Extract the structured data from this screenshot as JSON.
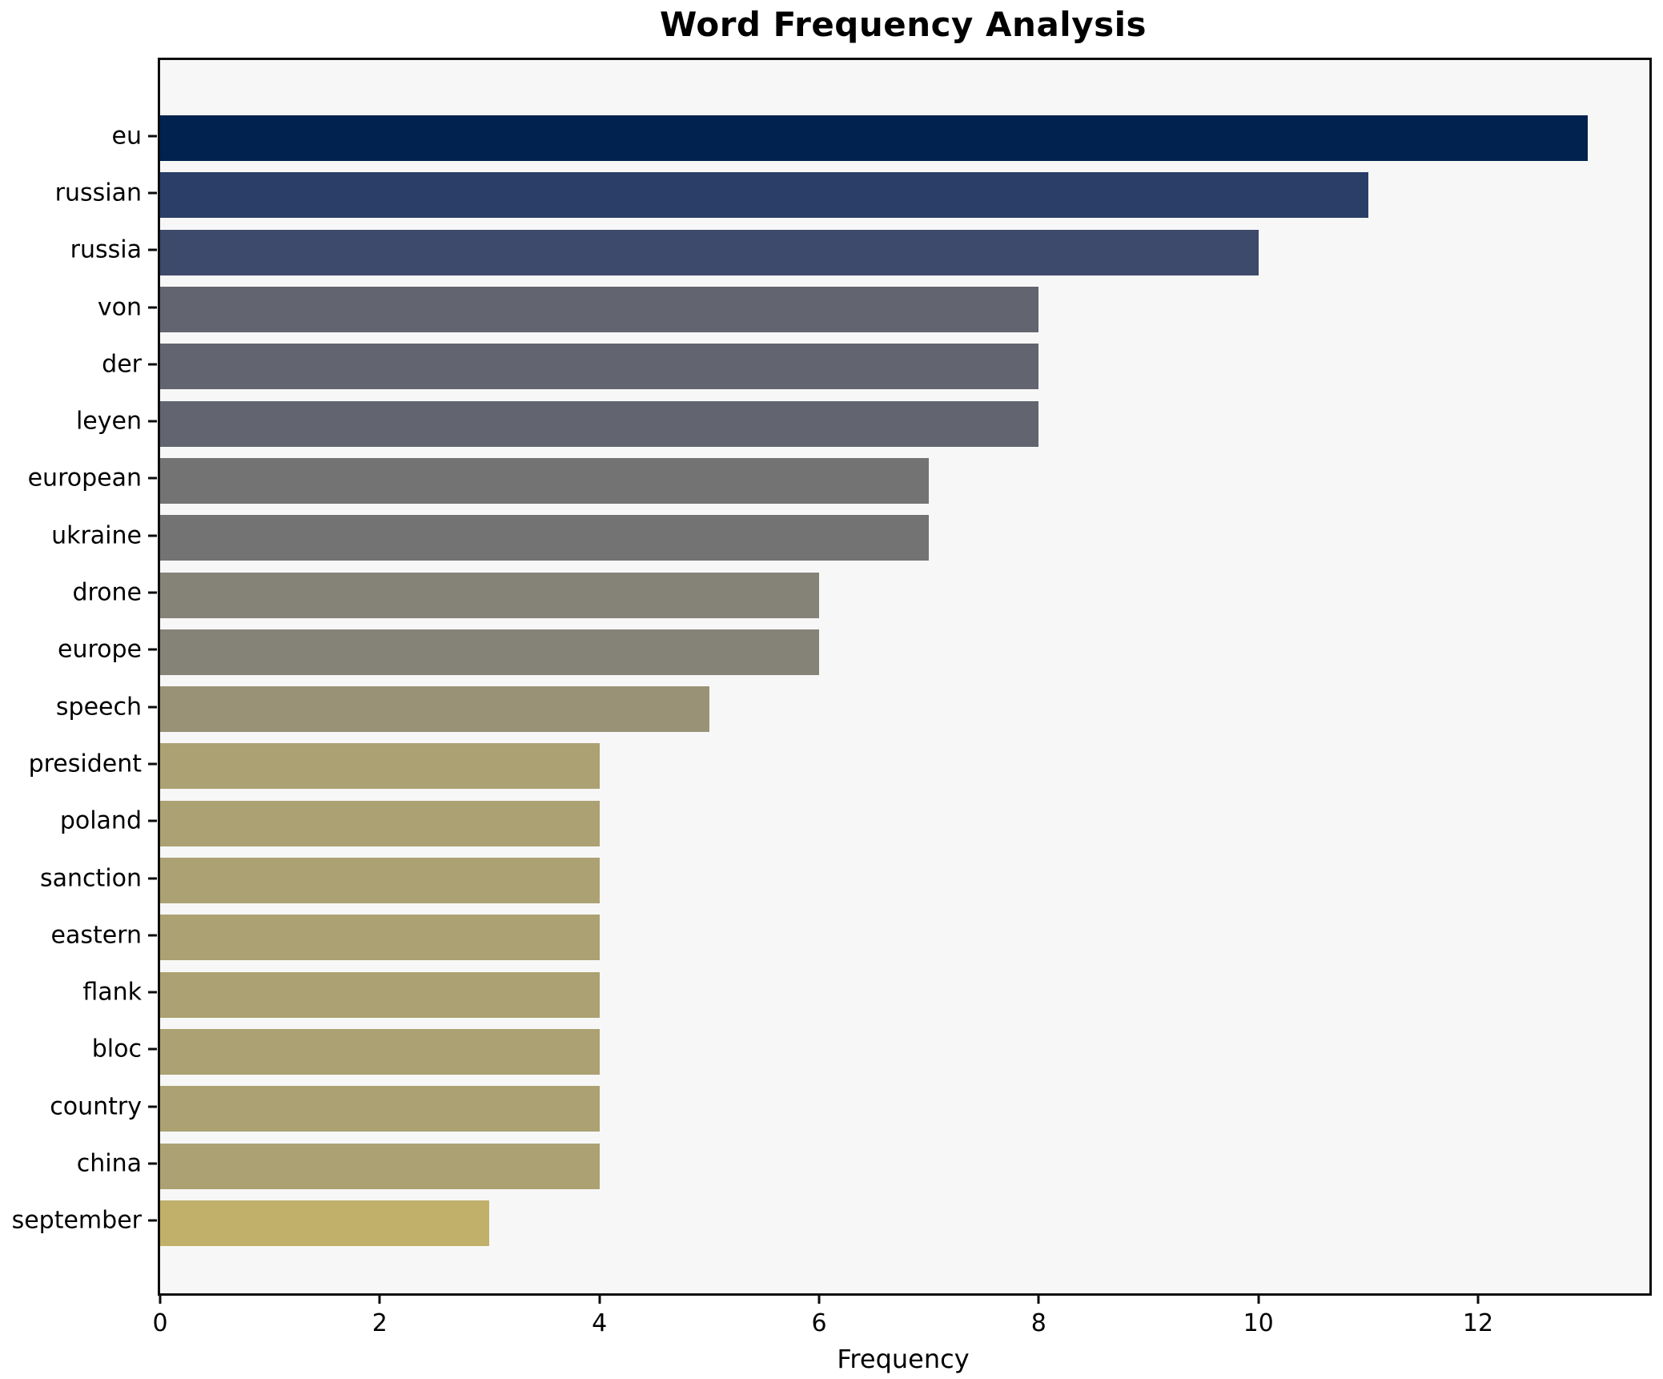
{
  "chart_data": {
    "type": "bar",
    "orientation": "horizontal",
    "title": "Word Frequency Analysis",
    "xlabel": "Frequency",
    "ylabel": "",
    "categories": [
      "eu",
      "russian",
      "russia",
      "von",
      "der",
      "leyen",
      "european",
      "ukraine",
      "drone",
      "europe",
      "speech",
      "president",
      "poland",
      "sanction",
      "eastern",
      "flank",
      "bloc",
      "country",
      "china",
      "september"
    ],
    "values": [
      13,
      11,
      10,
      8,
      8,
      8,
      7,
      7,
      6,
      6,
      5,
      4,
      4,
      4,
      4,
      4,
      4,
      4,
      4,
      3
    ],
    "bar_colors": [
      "#01224e",
      "#2a3e68",
      "#3e4a6b",
      "#62646f",
      "#62646f",
      "#62646f",
      "#737373",
      "#737373",
      "#858278",
      "#858278",
      "#999277",
      "#aba172",
      "#aba172",
      "#aba172",
      "#aba172",
      "#aba172",
      "#aba172",
      "#aba172",
      "#aba172",
      "#c1b06a"
    ],
    "xlim": [
      0,
      13.56
    ],
    "xticks": [
      0,
      2,
      4,
      6,
      8,
      10,
      12
    ],
    "grid": false,
    "legend_position": "none",
    "plot_background": "#f7f7f7",
    "spine_color": "#0d0d0d"
  }
}
